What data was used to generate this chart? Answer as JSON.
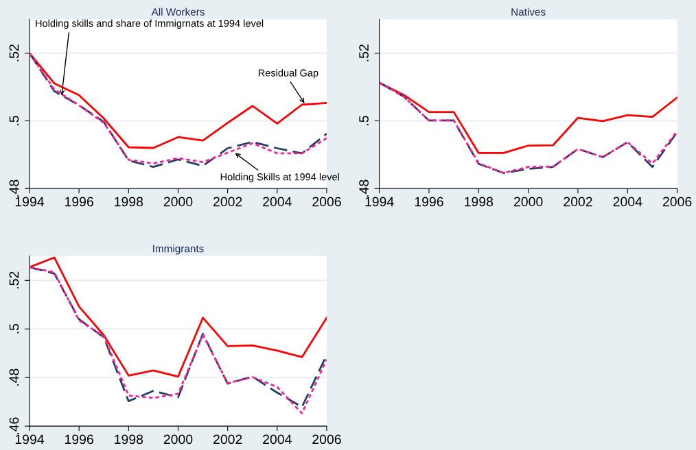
{
  "chart_data": [
    {
      "type": "line",
      "title": "All Workers",
      "x": [
        1994,
        1995,
        1996,
        1997,
        1998,
        1999,
        2000,
        2001,
        2002,
        2003,
        2004,
        2005,
        2006
      ],
      "xlim": [
        1994,
        2006
      ],
      "xticks": [
        1994,
        1996,
        1998,
        2000,
        2002,
        2004,
        2006
      ],
      "ylim": [
        0.48,
        0.53
      ],
      "yticks": [
        {
          "value": 0.48,
          "label": ".48"
        },
        {
          "value": 0.5,
          "label": ".5"
        },
        {
          "value": 0.52,
          "label": ".52"
        }
      ],
      "grid": "y",
      "series": [
        {
          "color": "#ff0000",
          "line_style": "solid",
          "values": [
            0.52,
            0.5111,
            0.5076,
            0.5007,
            0.4922,
            0.492,
            0.4952,
            0.4942,
            0.4994,
            0.5044,
            0.4992,
            0.5048,
            0.5053
          ]
        },
        {
          "color": "#1f3f66",
          "line_style": "dashed",
          "values": [
            0.52,
            0.5088,
            0.5046,
            0.4997,
            0.4883,
            0.4864,
            0.4886,
            0.4867,
            0.4919,
            0.4938,
            0.4919,
            0.4904,
            0.4962
          ]
        },
        {
          "color": "#ff2090",
          "line_style": "dotted",
          "values": [
            0.52,
            0.5093,
            0.5046,
            0.4994,
            0.4885,
            0.4874,
            0.489,
            0.4878,
            0.4906,
            0.4934,
            0.4904,
            0.4904,
            0.4949
          ]
        }
      ],
      "annotations": [
        {
          "text": "Holding skills and share of Immigrnats at 1994 level",
          "x": 1995.3,
          "y": 0.5075
        },
        {
          "text": "Residual Gap",
          "x": 2005.1,
          "y": 0.5052
        },
        {
          "text": "Holding Skills at 1994 level",
          "x": 2002.3,
          "y": 0.4905
        }
      ]
    },
    {
      "type": "line",
      "title": "Natives",
      "x": [
        1994,
        1995,
        1996,
        1997,
        1998,
        1999,
        2000,
        2001,
        2002,
        2003,
        2004,
        2005,
        2006
      ],
      "xlim": [
        1994,
        2006
      ],
      "xticks": [
        1994,
        1996,
        1998,
        2000,
        2002,
        2004,
        2006
      ],
      "ylim": [
        0.48,
        0.53
      ],
      "yticks": [
        {
          "value": 0.48,
          "label": ".48"
        },
        {
          "value": 0.5,
          "label": ".5"
        },
        {
          "value": 0.52,
          "label": ".52"
        }
      ],
      "grid": "y",
      "series": [
        {
          "color": "#ff0000",
          "line_style": "solid",
          "values": [
            0.5113,
            0.5076,
            0.5026,
            0.5026,
            0.4905,
            0.4905,
            0.4927,
            0.4928,
            0.5009,
            0.4999,
            0.5017,
            0.5012,
            0.5069
          ]
        },
        {
          "color": "#1f3f66",
          "line_style": "dashed",
          "values": [
            0.5113,
            0.5071,
            0.5001,
            0.5001,
            0.4873,
            0.4846,
            0.4858,
            0.4864,
            0.4917,
            0.4893,
            0.4937,
            0.4864,
            0.4967
          ]
        },
        {
          "color": "#ff2090",
          "line_style": "dotted",
          "values": [
            0.5113,
            0.5071,
            0.5001,
            0.5001,
            0.4875,
            0.4846,
            0.4864,
            0.4865,
            0.4917,
            0.4893,
            0.4937,
            0.4874,
            0.497
          ]
        }
      ]
    },
    {
      "type": "line",
      "title": "Immigrants",
      "x": [
        1994,
        1995,
        1996,
        1997,
        1998,
        1999,
        2000,
        2001,
        2002,
        2003,
        2004,
        2005,
        2006
      ],
      "xlim": [
        1994,
        2006
      ],
      "xticks": [
        1994,
        1996,
        1998,
        2000,
        2002,
        2004,
        2006
      ],
      "ylim": [
        0.46,
        0.53
      ],
      "yticks": [
        {
          "value": 0.46,
          "label": ".46"
        },
        {
          "value": 0.48,
          "label": ".48"
        },
        {
          "value": 0.5,
          "label": ".5"
        },
        {
          "value": 0.52,
          "label": ".52"
        }
      ],
      "grid": "y",
      "series": [
        {
          "color": "#ff0000",
          "line_style": "solid",
          "values": [
            0.5254,
            0.5294,
            0.5092,
            0.4974,
            0.4808,
            0.4829,
            0.4804,
            0.5046,
            0.4929,
            0.4932,
            0.4911,
            0.4884,
            0.5046
          ]
        },
        {
          "color": "#1f3f66",
          "line_style": "dashed",
          "values": [
            0.5254,
            0.5228,
            0.504,
            0.4966,
            0.4703,
            0.4745,
            0.4719,
            0.498,
            0.4775,
            0.4804,
            0.4738,
            0.4679,
            0.4893
          ]
        },
        {
          "color": "#ff2090",
          "line_style": "dotted",
          "values": [
            0.5254,
            0.5233,
            0.5035,
            0.4969,
            0.4726,
            0.4716,
            0.4733,
            0.4976,
            0.4777,
            0.4802,
            0.4761,
            0.4653,
            0.4875
          ]
        }
      ]
    }
  ]
}
